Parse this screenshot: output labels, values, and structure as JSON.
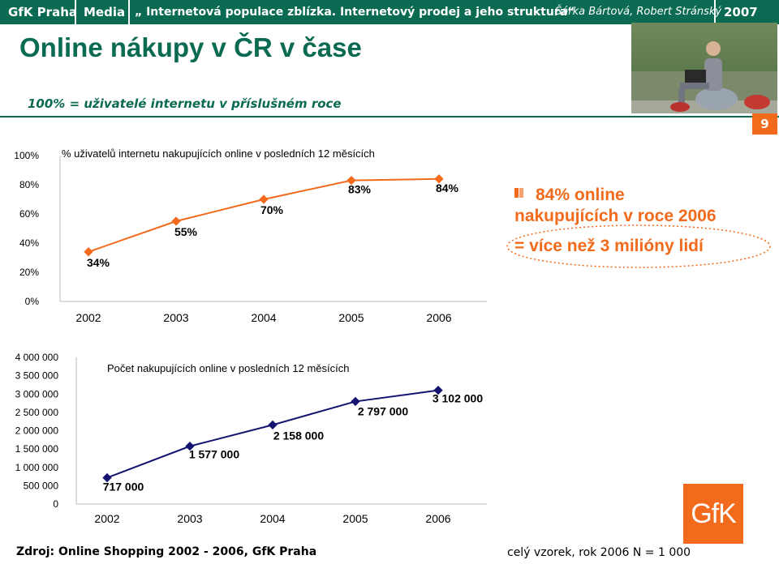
{
  "header": {
    "brand": "GfK Praha",
    "section": "Media",
    "topic": "„ Internetová populace zblízka. Internetový prodej a jeho struktura“",
    "authors": "Šárka Bártová, Robert Stránský",
    "year": "2007"
  },
  "page": {
    "title": "Online nákupy v ČR v čase",
    "subtitle": "100% = uživatelé internetu v příslušném roce",
    "page_number": "9",
    "source": "Zdroj: Online Shopping 2002 - 2006, GfK Praha",
    "sample": "celý vzorek, rok 2006 N = 1 000",
    "logo_text": "GfK"
  },
  "callout": {
    "line1": "84% online",
    "line2": "nakupujících v roce 2006",
    "line3": "= více než 3 milióny lidí"
  },
  "colors": {
    "brand_green": "#0a6b52",
    "accent_orange": "#f26a1b",
    "navy": "#141470"
  },
  "chart_data": [
    {
      "type": "line",
      "title": "% uživatelů internetu nakupujících online v posledních 12 měsících",
      "categories": [
        "2002",
        "2003",
        "2004",
        "2005",
        "2006"
      ],
      "values": [
        34,
        55,
        70,
        83,
        84
      ],
      "value_labels": [
        "34%",
        "55%",
        "70%",
        "83%",
        "84%"
      ],
      "y_ticks": [
        "0%",
        "20%",
        "40%",
        "60%",
        "80%",
        "100%"
      ],
      "ylim": [
        0,
        100
      ],
      "color": "#f26a1b",
      "grid": false
    },
    {
      "type": "line",
      "title": "Počet nakupujících online v posledních 12 měsících",
      "categories": [
        "2002",
        "2003",
        "2004",
        "2005",
        "2006"
      ],
      "values": [
        717000,
        1577000,
        2158000,
        2797000,
        3102000
      ],
      "value_labels": [
        "717 000",
        "1 577 000",
        "2 158 000",
        "2 797 000",
        "3 102 000"
      ],
      "y_ticks": [
        "0",
        "500 000",
        "1 000 000",
        "1 500 000",
        "2 000 000",
        "2 500 000",
        "3 000 000",
        "3 500 000",
        "4 000 000"
      ],
      "ylim": [
        0,
        4000000
      ],
      "color": "#141470",
      "grid": false
    }
  ]
}
